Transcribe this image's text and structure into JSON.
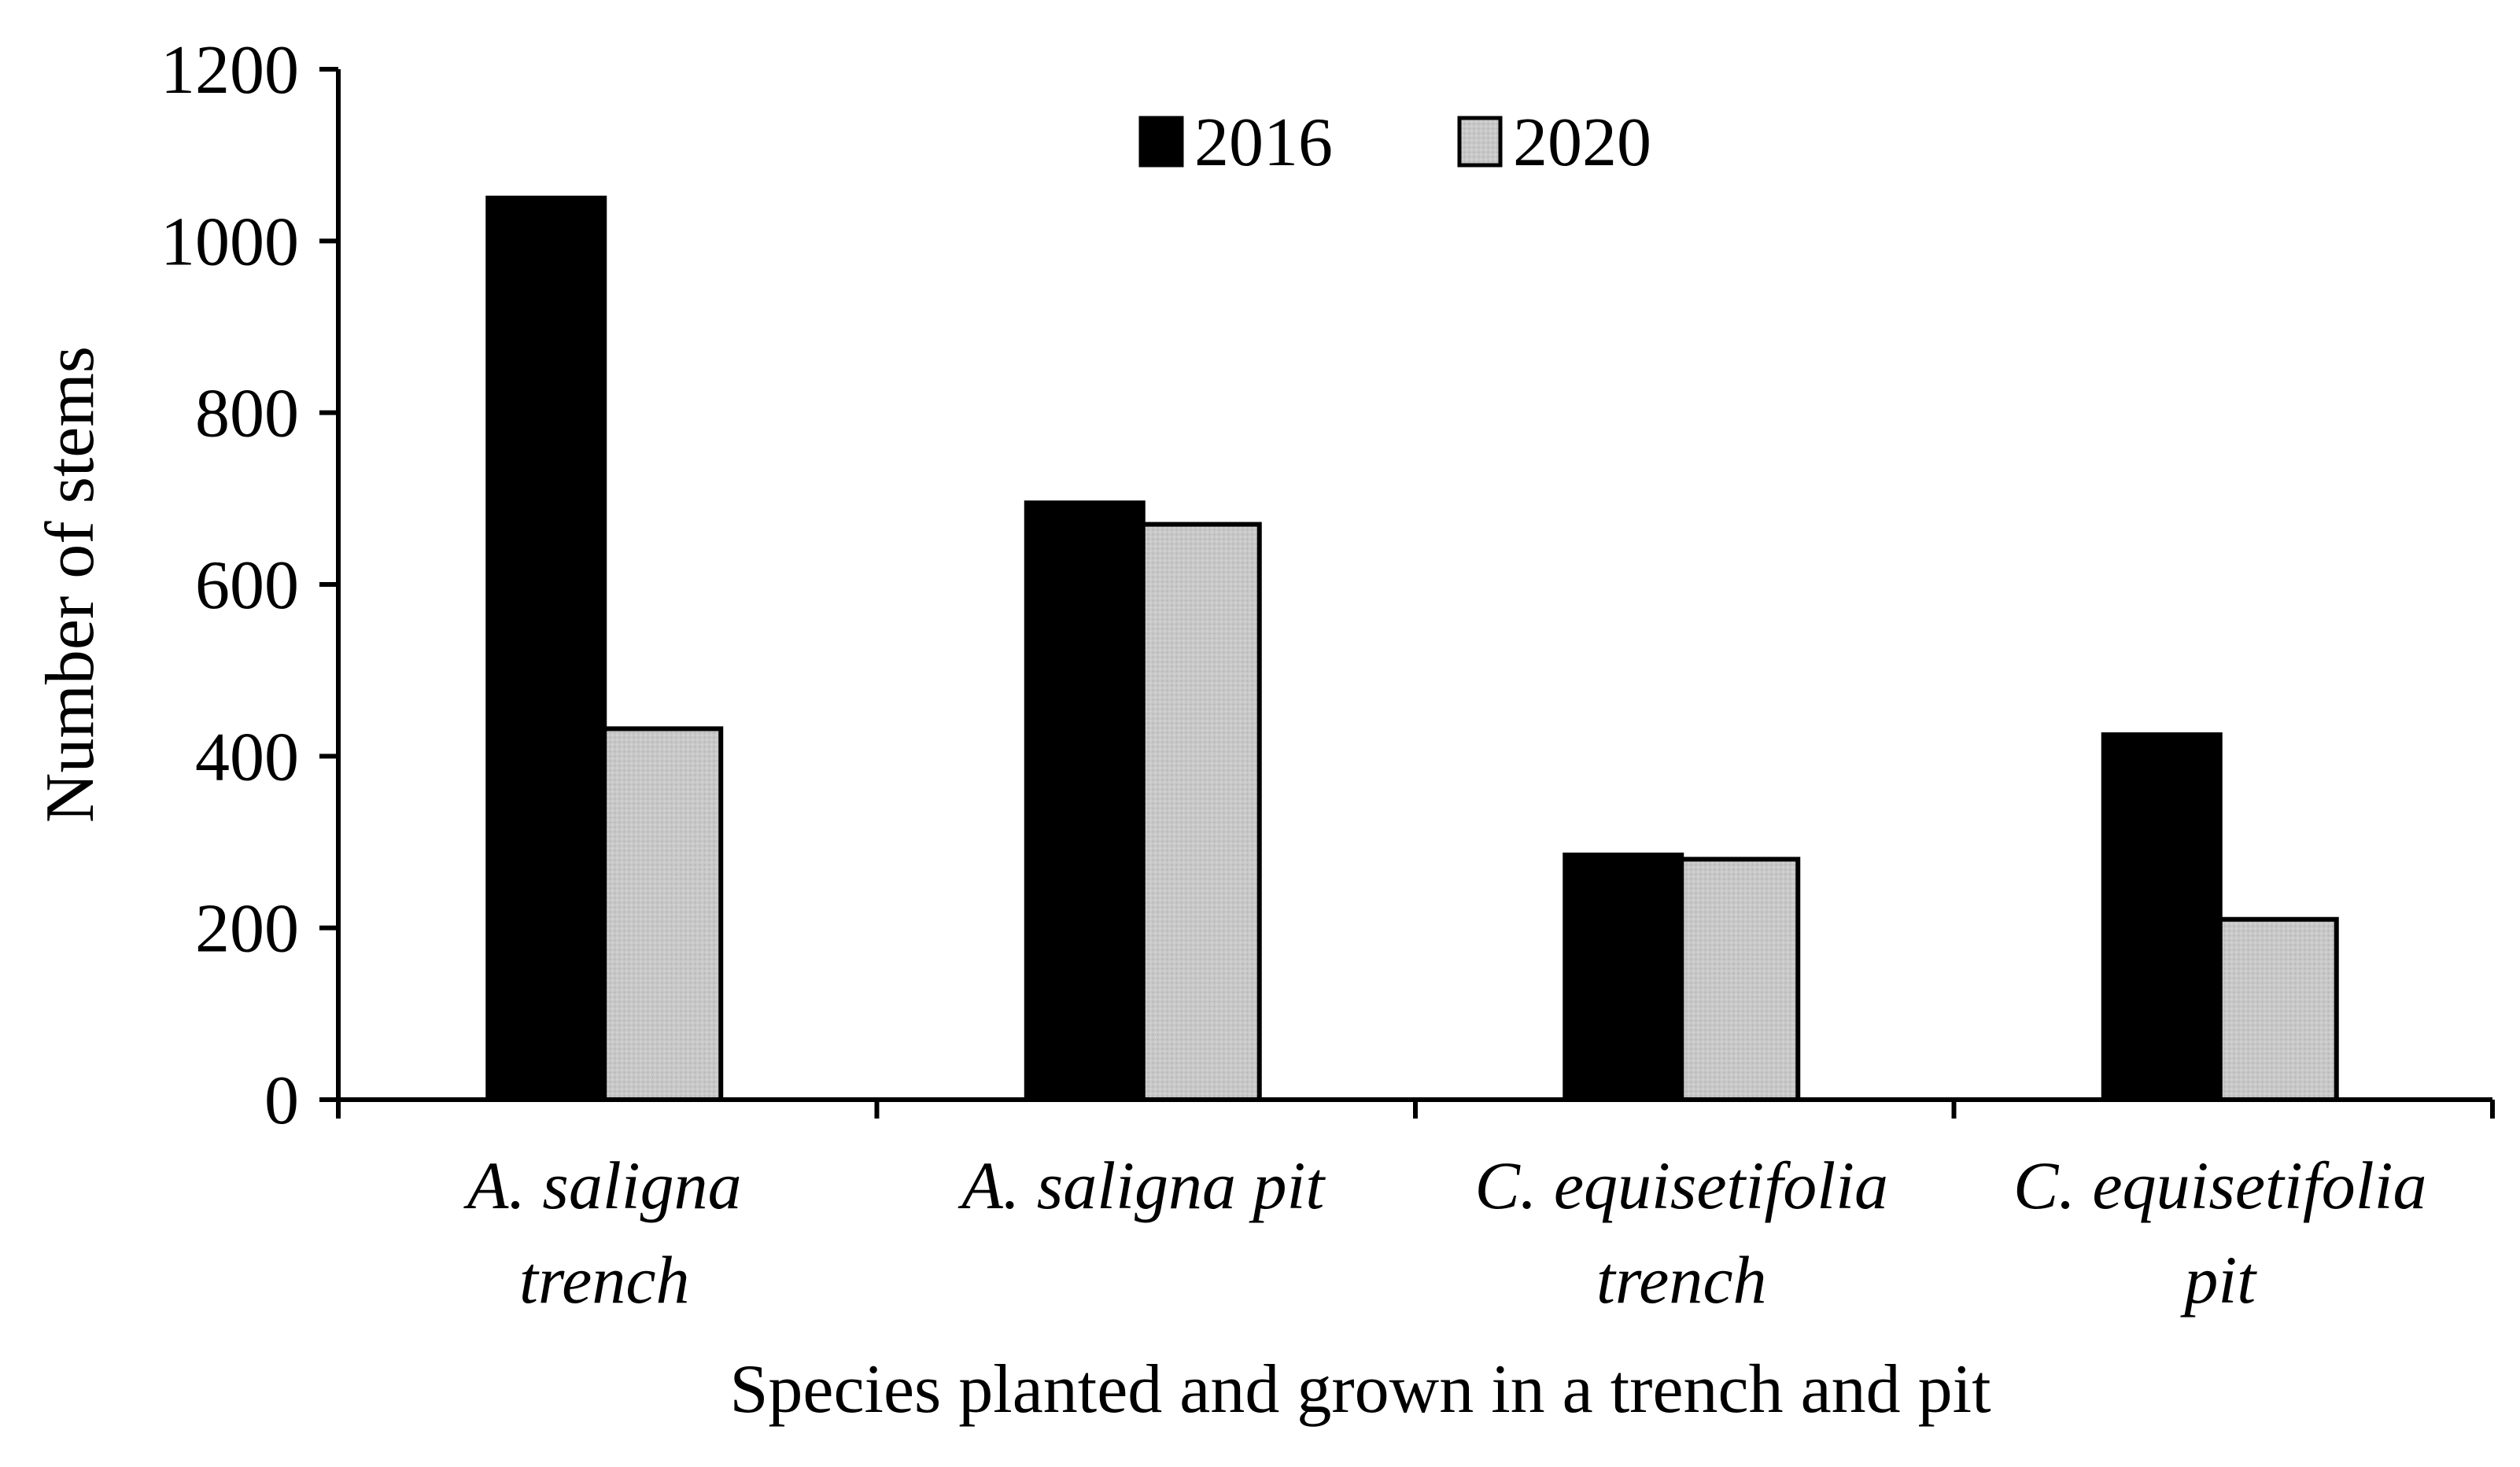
{
  "chart_data": {
    "type": "bar",
    "title": "",
    "xlabel": "Species planted and grown in a trench and pit",
    "ylabel": "Number of stems",
    "ylim": [
      0,
      1200
    ],
    "yticks": [
      0,
      200,
      400,
      600,
      800,
      1000,
      1200
    ],
    "ytick_labels": [
      "0",
      "200",
      "400",
      "600",
      "800",
      "1000",
      "1200"
    ],
    "categories": [
      [
        "A. saligna",
        "trench"
      ],
      [
        "A. saligna pit"
      ],
      [
        "C. equisetifolia",
        "trench"
      ],
      [
        "C. equisetifolia",
        "pit"
      ]
    ],
    "series": [
      {
        "name": "2016",
        "color": "#000000",
        "values": [
          1050,
          695,
          285,
          425
        ]
      },
      {
        "name": "2020",
        "color": "#c8c8c8",
        "values": [
          432,
          670,
          280,
          210
        ]
      }
    ],
    "legend": {
      "position": "top-center"
    },
    "grid": false
  }
}
